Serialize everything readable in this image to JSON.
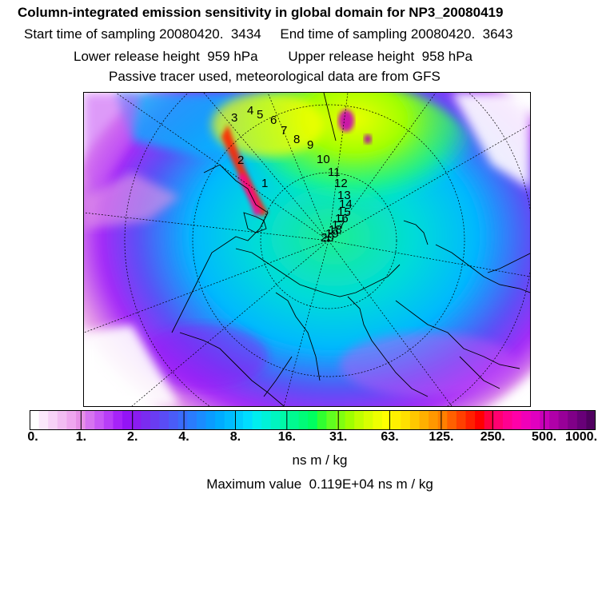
{
  "header": {
    "title": "Column-integrated emission sensitivity in global domain for NP3_20080419",
    "line2": "Start time of sampling 20080420.  3434     End time of sampling 20080420.  3643",
    "line3": "Lower release height  959 hPa        Upper release height  958 hPa",
    "line4": "Passive tracer used, meteorological data are from GFS"
  },
  "chart_data": {
    "type": "heatmap",
    "projection": "north polar stereographic",
    "title": "Column-integrated emission sensitivity in global domain for NP3_20080419",
    "colorbar": {
      "ticks": [
        "0.",
        "1.",
        "2.",
        "4.",
        "8.",
        "16.",
        "31.",
        "63.",
        "125.",
        "250.",
        "500.",
        "1000."
      ],
      "units": "ns m / kg",
      "colors": [
        "#ffffff",
        "#fbe8fb",
        "#f7d2f7",
        "#f2bcf2",
        "#eea6ee",
        "#e68fe6",
        "#d674f0",
        "#c859f5",
        "#b83ef7",
        "#a623f8",
        "#9414f5",
        "#8a1cf0",
        "#7a2cf0",
        "#6a3cf2",
        "#5a4cf5",
        "#4a5cf8",
        "#3a6cfb",
        "#2a7cfd",
        "#1a8cff",
        "#0a9cff",
        "#00acff",
        "#00bcff",
        "#00ccff",
        "#00ddff",
        "#00eeee",
        "#00f2d8",
        "#00f5c0",
        "#00f8a8",
        "#00fa90",
        "#00fc78",
        "#00ff60",
        "#30ff30",
        "#60ff20",
        "#80ff10",
        "#a0ff00",
        "#c0ff00",
        "#d8ff00",
        "#eeff00",
        "#ffff00",
        "#fff000",
        "#ffe000",
        "#ffc800",
        "#ffb000",
        "#ff9800",
        "#ff8000",
        "#ff6000",
        "#ff4000",
        "#ff2000",
        "#ff0000",
        "#ff0040",
        "#ff0070",
        "#ff0090",
        "#ff00a8",
        "#f000b8",
        "#e000c0",
        "#c800b8",
        "#b000a8",
        "#980098",
        "#800088",
        "#680078",
        "#500060"
      ]
    },
    "max_value": "0.119E+04",
    "trajectory_labels": [
      "1",
      "2",
      "3",
      "4",
      "5",
      "6",
      "7",
      "8",
      "9",
      "10",
      "11",
      "12",
      "13",
      "14",
      "15",
      "16",
      "17",
      "18",
      "19",
      "20"
    ]
  },
  "footer": {
    "units_label": "ns m / kg",
    "max_label": "Maximum value  0.119E+04 ns m / kg"
  }
}
